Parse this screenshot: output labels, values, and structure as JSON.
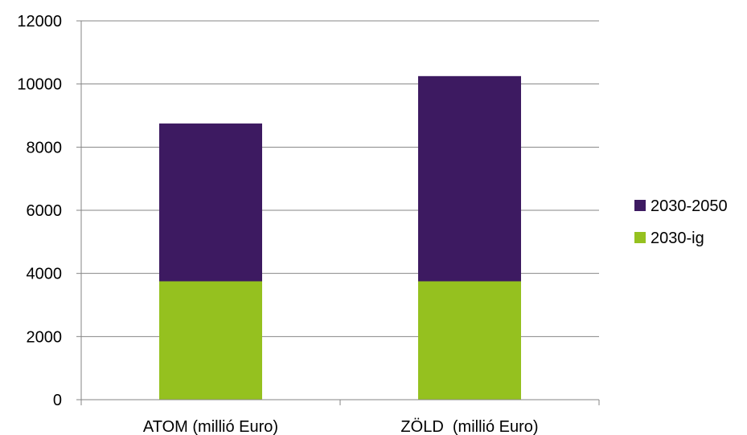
{
  "chart_data": {
    "type": "bar",
    "stacked": true,
    "categories": [
      "ATOM (millió Euro)",
      "ZÖLD  (millió Euro)"
    ],
    "series": [
      {
        "name": "2030-ig",
        "values": [
          3750,
          3750
        ],
        "color": "#95c11f"
      },
      {
        "name": "2030-2050",
        "values": [
          5000,
          6500
        ],
        "color": "#3d1a61"
      }
    ],
    "title": "",
    "xlabel": "",
    "ylabel": "",
    "ylim": [
      0,
      12000
    ],
    "yticks": [
      0,
      2000,
      4000,
      6000,
      8000,
      10000,
      12000
    ],
    "grid": true,
    "legend": {
      "placement": "right",
      "order": [
        "2030-2050",
        "2030-ig"
      ]
    }
  }
}
